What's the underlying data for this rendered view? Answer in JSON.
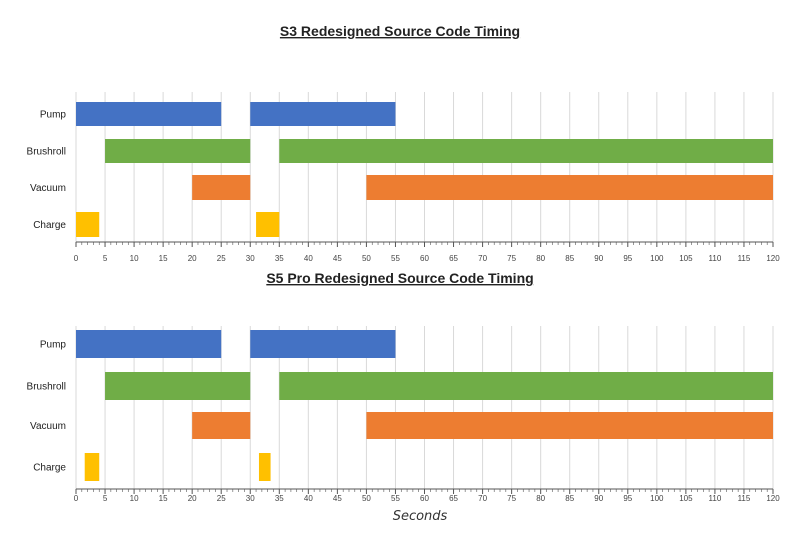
{
  "chart_data": [
    {
      "type": "bar",
      "orientation": "horizontal-range",
      "title": "S3 Redesigned Source Code Timing",
      "xlabel": "",
      "ylabel": "",
      "xlim": [
        0,
        120
      ],
      "xticks": [
        0,
        5,
        10,
        15,
        20,
        25,
        30,
        35,
        40,
        45,
        50,
        55,
        60,
        65,
        70,
        75,
        80,
        85,
        90,
        95,
        100,
        105,
        110,
        115,
        120
      ],
      "grid": "vertical",
      "categories": [
        "Pump",
        "Brushroll",
        "Vacuum",
        "Charge"
      ],
      "series": [
        {
          "color": "#4472C4",
          "intervals": [
            [
              0,
              25
            ],
            [
              30,
              55
            ]
          ]
        },
        {
          "color": "#70AD47",
          "intervals": [
            [
              5,
              30
            ],
            [
              35,
              120
            ]
          ]
        },
        {
          "color": "#ED7D31",
          "intervals": [
            [
              20,
              30
            ],
            [
              50,
              120
            ]
          ]
        },
        {
          "color": "#FFC000",
          "intervals": [
            [
              0,
              4
            ],
            [
              31,
              35
            ]
          ]
        }
      ]
    },
    {
      "type": "bar",
      "orientation": "horizontal-range",
      "title": "S5 Pro Redesigned Source Code Timing",
      "xlabel": "Seconds",
      "ylabel": "",
      "xlim": [
        0,
        120
      ],
      "xticks": [
        0,
        5,
        10,
        15,
        20,
        25,
        30,
        35,
        40,
        45,
        50,
        55,
        60,
        65,
        70,
        75,
        80,
        85,
        90,
        95,
        100,
        105,
        110,
        115,
        120
      ],
      "grid": "vertical",
      "categories": [
        "Pump",
        "Brushroll",
        "Vacuum",
        "Charge"
      ],
      "series": [
        {
          "color": "#4472C4",
          "intervals": [
            [
              0,
              25
            ],
            [
              30,
              55
            ]
          ]
        },
        {
          "color": "#70AD47",
          "intervals": [
            [
              5,
              30
            ],
            [
              35,
              120
            ]
          ]
        },
        {
          "color": "#ED7D31",
          "intervals": [
            [
              20,
              30
            ],
            [
              50,
              120
            ]
          ]
        },
        {
          "color": "#FFC000",
          "intervals": [
            [
              1.5,
              4
            ],
            [
              31.5,
              33.5
            ]
          ]
        }
      ]
    }
  ]
}
